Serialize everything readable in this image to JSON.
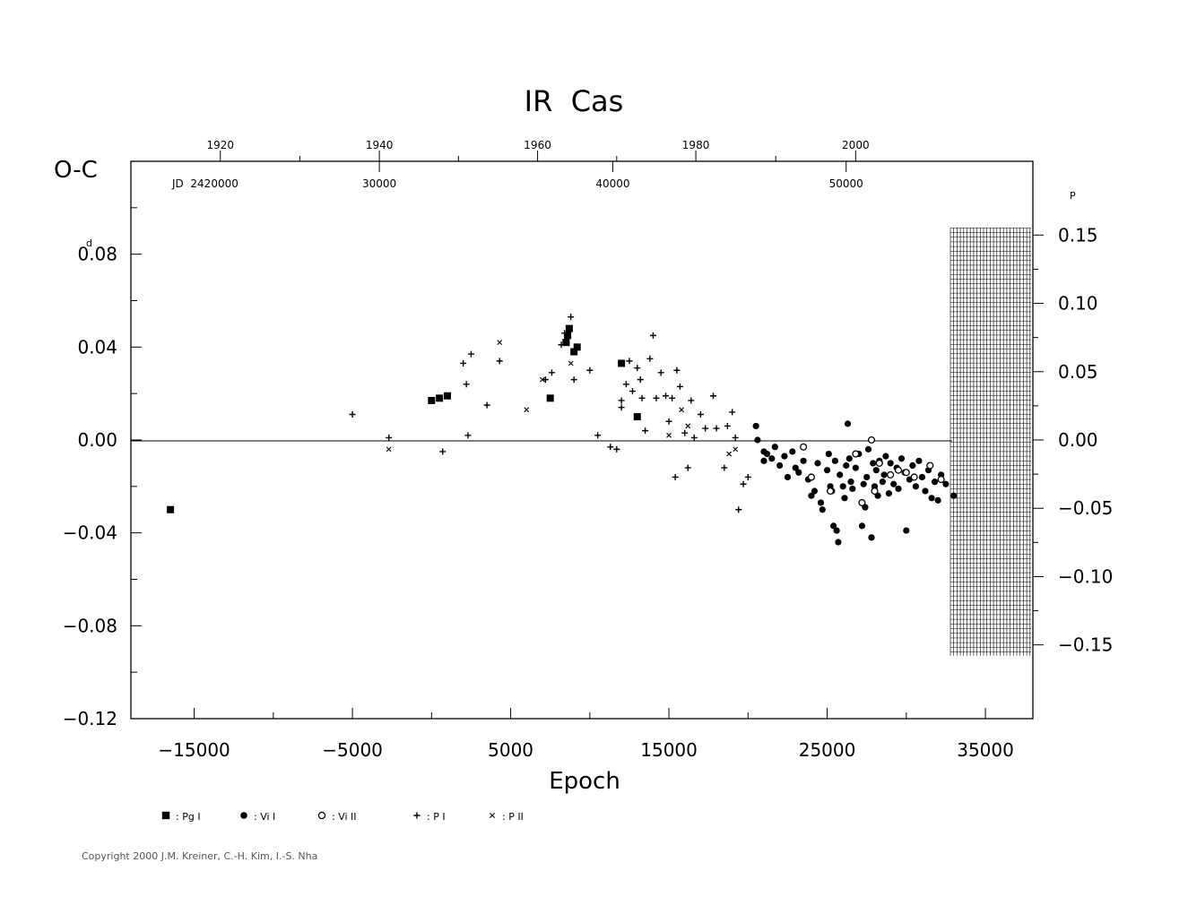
{
  "chart_data": {
    "type": "scatter",
    "title": "IR  Cas",
    "xlabel": "Epoch",
    "ylabel": "O-C",
    "y_unit_superscript": "d",
    "y2_unit_superscript": "P",
    "xlim": [
      -19000,
      38000
    ],
    "ylim": [
      -0.12,
      0.12
    ],
    "x_ticks": [
      -15000,
      -5000,
      5000,
      15000,
      25000,
      35000
    ],
    "x_tick_labels": [
      "−15000",
      "−5000",
      "5000",
      "15000",
      "25000",
      "35000"
    ],
    "y_ticks": [
      -0.12,
      -0.08,
      -0.04,
      0.0,
      0.04,
      0.08
    ],
    "y_tick_labels": [
      "−0.12",
      "−0.08",
      "−0.04",
      "0.00",
      "0.04",
      "0.08"
    ],
    "y2_ticks": [
      -0.15,
      -0.1,
      -0.05,
      0.0,
      0.05,
      0.1,
      0.15
    ],
    "y2_tick_labels": [
      "−0.15",
      "−0.10",
      "−0.05",
      "0.00",
      "0.05",
      "0.10",
      "0.15"
    ],
    "y2_scale_per_day": 1.7,
    "top_year_axis": {
      "labels": [
        "1920",
        "1940",
        "1960",
        "1980",
        "2000"
      ],
      "epochs": [
        -13350,
        -3300,
        6700,
        16700,
        26800
      ]
    },
    "jd_axis": {
      "prefix_label": "JD  2420000",
      "labels": [
        "30000",
        "40000",
        "50000"
      ],
      "epochs": [
        -3300,
        11450,
        26200
      ]
    },
    "legend": [
      {
        "label": ": Pg I",
        "symbol": "square"
      },
      {
        "label": ": Vi I",
        "symbol": "filled-circle"
      },
      {
        "label": ": Vi II",
        "symbol": "open-circle"
      },
      {
        "label": ": P I",
        "symbol": "plus"
      },
      {
        "label": ": P II",
        "symbol": "cross"
      }
    ],
    "series": [
      {
        "name": "Pg I",
        "symbol": "square",
        "points": [
          [
            -16500,
            -0.03
          ],
          [
            0,
            0.017
          ],
          [
            500,
            0.018
          ],
          [
            1000,
            0.019
          ],
          [
            7500,
            0.018
          ],
          [
            8500,
            0.042
          ],
          [
            8600,
            0.045
          ],
          [
            8700,
            0.048
          ],
          [
            9000,
            0.038
          ],
          [
            9200,
            0.04
          ],
          [
            12000,
            0.033
          ],
          [
            13000,
            0.01
          ]
        ]
      },
      {
        "name": "Vi I",
        "symbol": "filled-circle",
        "points": [
          [
            20500,
            0.006
          ],
          [
            20600,
            0.0
          ],
          [
            21000,
            -0.005
          ],
          [
            21000,
            -0.009
          ],
          [
            21200,
            -0.006
          ],
          [
            21500,
            -0.008
          ],
          [
            21700,
            -0.003
          ],
          [
            22000,
            -0.011
          ],
          [
            22300,
            -0.007
          ],
          [
            22500,
            -0.016
          ],
          [
            22800,
            -0.005
          ],
          [
            23000,
            -0.012
          ],
          [
            23200,
            -0.014
          ],
          [
            23500,
            -0.009
          ],
          [
            23800,
            -0.017
          ],
          [
            24000,
            -0.024
          ],
          [
            24200,
            -0.022
          ],
          [
            24400,
            -0.01
          ],
          [
            24600,
            -0.027
          ],
          [
            24700,
            -0.03
          ],
          [
            25000,
            -0.013
          ],
          [
            25100,
            -0.006
          ],
          [
            25200,
            -0.02
          ],
          [
            25300,
            -0.022
          ],
          [
            25400,
            -0.037
          ],
          [
            25500,
            -0.009
          ],
          [
            25600,
            -0.039
          ],
          [
            25700,
            -0.044
          ],
          [
            25800,
            -0.015
          ],
          [
            26000,
            -0.02
          ],
          [
            26100,
            -0.025
          ],
          [
            26200,
            -0.011
          ],
          [
            26300,
            0.007
          ],
          [
            26400,
            -0.008
          ],
          [
            26500,
            -0.018
          ],
          [
            26600,
            -0.021
          ],
          [
            26800,
            -0.012
          ],
          [
            27000,
            -0.006
          ],
          [
            27200,
            -0.037
          ],
          [
            27300,
            -0.019
          ],
          [
            27400,
            -0.029
          ],
          [
            27500,
            -0.016
          ],
          [
            27600,
            -0.004
          ],
          [
            27800,
            -0.042
          ],
          [
            27900,
            -0.01
          ],
          [
            28000,
            -0.02
          ],
          [
            28100,
            -0.013
          ],
          [
            28200,
            -0.024
          ],
          [
            28300,
            -0.009
          ],
          [
            28500,
            -0.018
          ],
          [
            28600,
            -0.015
          ],
          [
            28700,
            -0.007
          ],
          [
            28900,
            -0.023
          ],
          [
            29000,
            -0.01
          ],
          [
            29200,
            -0.019
          ],
          [
            29400,
            -0.012
          ],
          [
            29500,
            -0.021
          ],
          [
            29700,
            -0.008
          ],
          [
            29900,
            -0.014
          ],
          [
            30000,
            -0.039
          ],
          [
            30200,
            -0.017
          ],
          [
            30400,
            -0.011
          ],
          [
            30600,
            -0.02
          ],
          [
            30800,
            -0.009
          ],
          [
            31000,
            -0.016
          ],
          [
            31200,
            -0.022
          ],
          [
            31400,
            -0.013
          ],
          [
            31600,
            -0.025
          ],
          [
            31800,
            -0.018
          ],
          [
            32000,
            -0.026
          ],
          [
            32200,
            -0.015
          ],
          [
            32500,
            -0.019
          ],
          [
            33000,
            -0.024
          ]
        ]
      },
      {
        "name": "Vi II",
        "symbol": "open-circle",
        "points": [
          [
            23500,
            -0.003
          ],
          [
            24000,
            -0.016
          ],
          [
            25200,
            -0.022
          ],
          [
            26800,
            -0.006
          ],
          [
            27200,
            -0.027
          ],
          [
            27800,
            0.0
          ],
          [
            28000,
            -0.022
          ],
          [
            28300,
            -0.01
          ],
          [
            29000,
            -0.015
          ],
          [
            29500,
            -0.013
          ],
          [
            30000,
            -0.014
          ],
          [
            30500,
            -0.016
          ],
          [
            31500,
            -0.011
          ],
          [
            32200,
            -0.017
          ]
        ]
      },
      {
        "name": "P I",
        "symbol": "plus",
        "points": [
          [
            -5000,
            0.011
          ],
          [
            -2700,
            0.001
          ],
          [
            700,
            -0.005
          ],
          [
            2000,
            0.033
          ],
          [
            2200,
            0.024
          ],
          [
            2300,
            0.002
          ],
          [
            2500,
            0.037
          ],
          [
            3500,
            0.015
          ],
          [
            4300,
            0.034
          ],
          [
            7200,
            0.026
          ],
          [
            7600,
            0.029
          ],
          [
            8200,
            0.041
          ],
          [
            8400,
            0.046
          ],
          [
            8800,
            0.053
          ],
          [
            9000,
            0.026
          ],
          [
            10000,
            0.03
          ],
          [
            10500,
            0.002
          ],
          [
            11300,
            -0.003
          ],
          [
            11700,
            -0.004
          ],
          [
            12000,
            0.014
          ],
          [
            12000,
            0.017
          ],
          [
            12300,
            0.024
          ],
          [
            12500,
            0.034
          ],
          [
            12700,
            0.021
          ],
          [
            13000,
            0.031
          ],
          [
            13200,
            0.026
          ],
          [
            13300,
            0.018
          ],
          [
            13500,
            0.004
          ],
          [
            13800,
            0.035
          ],
          [
            14000,
            0.045
          ],
          [
            14200,
            0.018
          ],
          [
            14500,
            0.029
          ],
          [
            14800,
            0.019
          ],
          [
            15000,
            0.008
          ],
          [
            15200,
            0.018
          ],
          [
            15400,
            -0.016
          ],
          [
            15500,
            0.03
          ],
          [
            15700,
            0.023
          ],
          [
            16000,
            0.003
          ],
          [
            16200,
            -0.012
          ],
          [
            16400,
            0.017
          ],
          [
            16600,
            0.001
          ],
          [
            17000,
            0.011
          ],
          [
            17300,
            0.005
          ],
          [
            17800,
            0.019
          ],
          [
            18000,
            0.005
          ],
          [
            18500,
            -0.012
          ],
          [
            18700,
            0.006
          ],
          [
            19000,
            0.012
          ],
          [
            19200,
            0.001
          ],
          [
            19400,
            -0.03
          ],
          [
            19700,
            -0.019
          ],
          [
            20000,
            -0.016
          ]
        ]
      },
      {
        "name": "P II",
        "symbol": "cross",
        "points": [
          [
            -2700,
            -0.004
          ],
          [
            4300,
            0.042
          ],
          [
            6000,
            0.013
          ],
          [
            7000,
            0.026
          ],
          [
            8800,
            0.033
          ],
          [
            15000,
            0.002
          ],
          [
            15800,
            0.013
          ],
          [
            16200,
            0.006
          ],
          [
            18800,
            -0.006
          ],
          [
            19200,
            -0.004
          ]
        ]
      }
    ]
  },
  "copyright": "Copyright 2000 J.M. Kreiner, C.-H. Kim, I.-S. Nha"
}
